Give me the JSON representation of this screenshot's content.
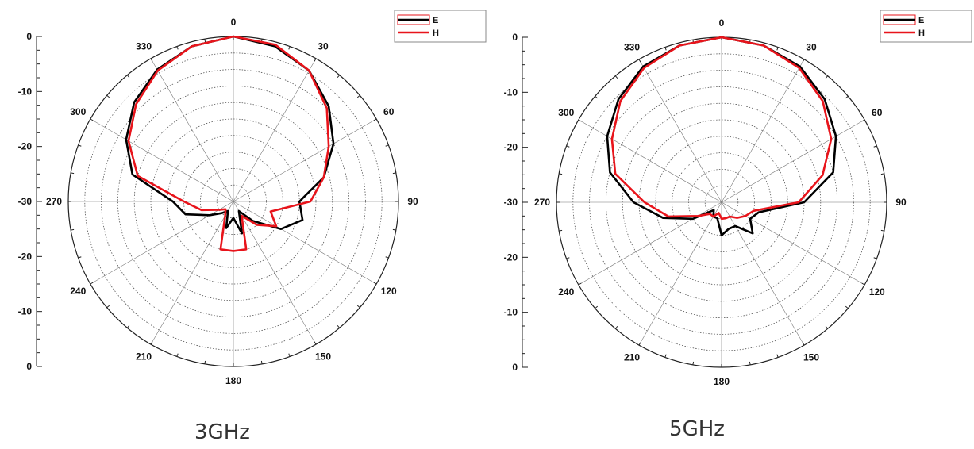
{
  "chart_data": [
    {
      "type": "polar-line",
      "caption": "3GHz",
      "angle_labels": [
        "0",
        "30",
        "60",
        "90",
        "120",
        "150",
        "180",
        "210",
        "240",
        "270",
        "300",
        "330"
      ],
      "radial_ticks": [
        "0",
        "-10",
        "-20",
        "-30",
        "-20",
        "-10",
        "0"
      ],
      "rlim": [
        -30,
        0
      ],
      "grid": true,
      "legend_position": "top-right",
      "series": [
        {
          "name": "E",
          "color": "#000000",
          "angles": [
            0,
            15,
            30,
            45,
            60,
            75,
            90,
            105,
            120,
            135,
            150,
            165,
            180,
            195,
            210,
            225,
            240,
            255,
            270,
            285,
            300,
            315,
            330,
            345
          ],
          "values": [
            0,
            -0.8,
            -2.5,
            -5.5,
            -9,
            -13,
            -18,
            -17,
            -20,
            -25,
            -28,
            -24,
            -27,
            -25,
            -28,
            -27,
            -25,
            -21,
            -19,
            -11,
            -7.5,
            -4.5,
            -2.3,
            -0.8
          ]
        },
        {
          "name": "H",
          "color": "#e8141b",
          "angles": [
            0,
            15,
            30,
            45,
            60,
            75,
            90,
            105,
            120,
            135,
            150,
            165,
            180,
            195,
            210,
            225,
            240,
            255,
            270,
            285,
            300,
            315,
            330,
            345
          ],
          "values": [
            0,
            -0.5,
            -2.5,
            -6,
            -10,
            -13,
            -16,
            -23,
            -21,
            -24,
            -27,
            -21,
            -21,
            -21,
            -27,
            -28,
            -27,
            -24,
            -21,
            -12,
            -8,
            -5,
            -2.5,
            -0.8
          ]
        }
      ]
    },
    {
      "type": "polar-line",
      "caption": "5GHz",
      "angle_labels": [
        "0",
        "30",
        "60",
        "90",
        "120",
        "150",
        "180",
        "210",
        "240",
        "270",
        "300",
        "330"
      ],
      "radial_ticks": [
        "0",
        "-10",
        "-20",
        "-30",
        "-20",
        "-10",
        "0"
      ],
      "rlim": [
        -30,
        0
      ],
      "grid": true,
      "legend_position": "top-right",
      "series": [
        {
          "name": "E",
          "color": "#000000",
          "angles": [
            0,
            15,
            30,
            45,
            60,
            75,
            90,
            105,
            120,
            135,
            150,
            165,
            180,
            195,
            210,
            225,
            240,
            255,
            270,
            285,
            300,
            315,
            330,
            345
          ],
          "values": [
            0,
            -0.5,
            -1.5,
            -3.5,
            -6,
            -9,
            -15,
            -23,
            -24,
            -22,
            -25,
            -25,
            -24,
            -27,
            -27,
            -28,
            -24,
            -19,
            -14,
            -9,
            -6,
            -3.5,
            -1.5,
            -0.5
          ]
        },
        {
          "name": "H",
          "color": "#e8141b",
          "angles": [
            0,
            15,
            30,
            45,
            60,
            75,
            90,
            105,
            120,
            135,
            150,
            165,
            180,
            195,
            210,
            225,
            240,
            255,
            270,
            285,
            300,
            315,
            330,
            345
          ],
          "values": [
            0,
            -0.5,
            -1.8,
            -4,
            -7,
            -11,
            -16,
            -24,
            -25,
            -26,
            -27,
            -27,
            -27,
            -28,
            -27,
            -27,
            -25,
            -20,
            -16,
            -10,
            -7,
            -4,
            -1.8,
            -0.5
          ]
        }
      ]
    }
  ]
}
